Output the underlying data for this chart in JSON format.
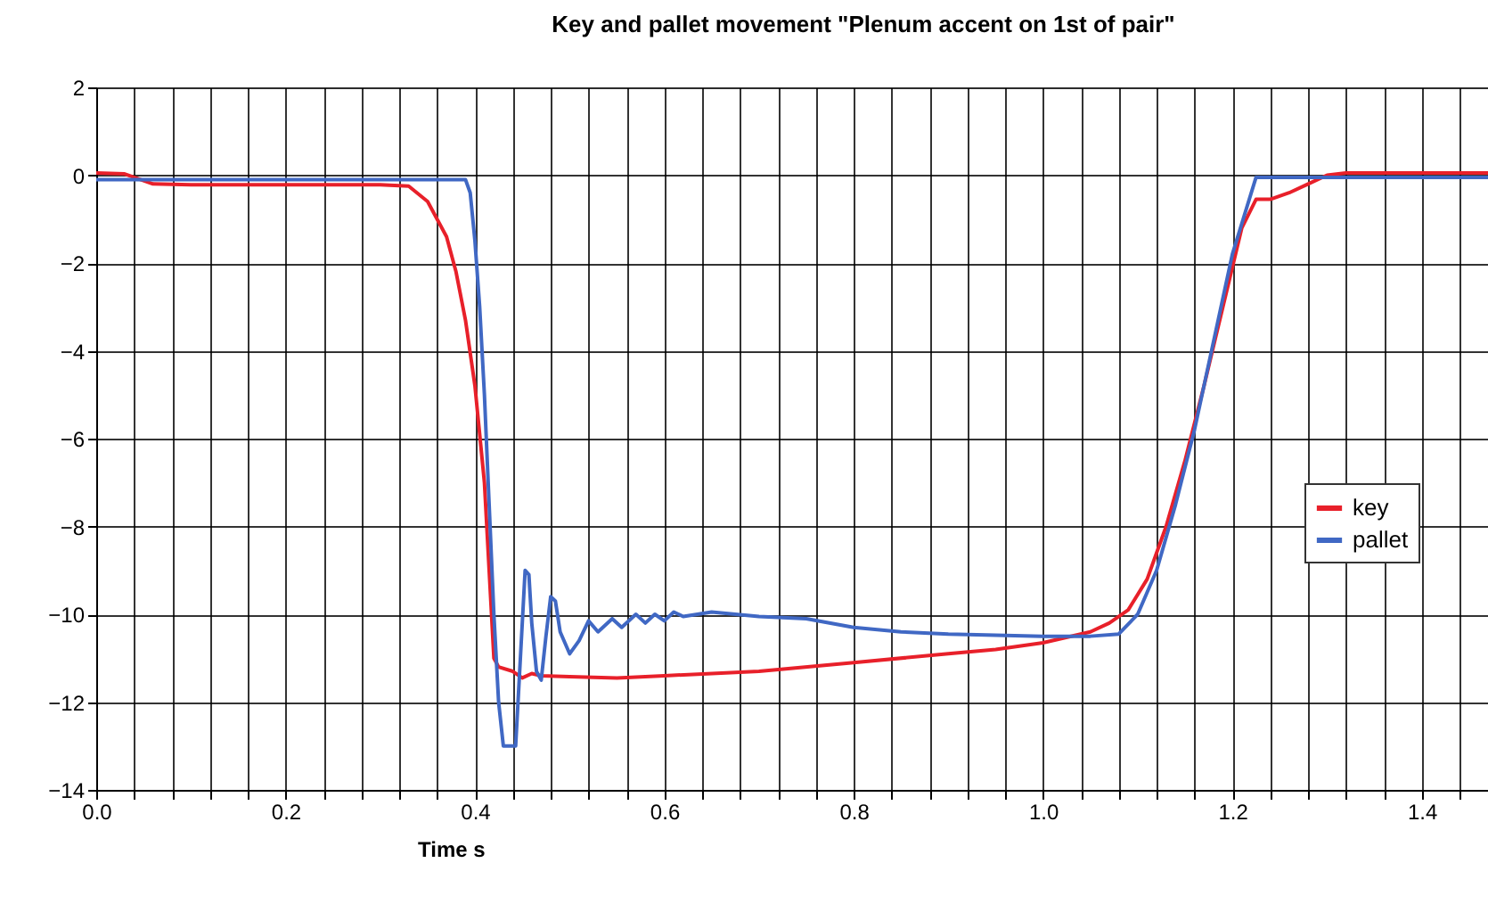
{
  "chart_data": {
    "type": "line",
    "title": "Key and pallet movement \"Plenum accent on 1st of pair\"",
    "xlabel": "Time s",
    "xlim": [
      0,
      1.47
    ],
    "ylim": [
      -14,
      2
    ],
    "xticks": [
      {
        "value": 0,
        "label": "0.0"
      },
      {
        "value": 0.04,
        "label": null
      },
      {
        "value": 0.08,
        "label": null
      },
      {
        "value": 0.12,
        "label": null
      },
      {
        "value": 0.16,
        "label": null
      },
      {
        "value": 0.2,
        "label": "0.2"
      },
      {
        "value": 0.24,
        "label": null
      },
      {
        "value": 0.28,
        "label": null
      },
      {
        "value": 0.32,
        "label": null
      },
      {
        "value": 0.36,
        "label": null
      },
      {
        "value": 0.4,
        "label": "0.4"
      },
      {
        "value": 0.44,
        "label": null
      },
      {
        "value": 0.48,
        "label": null
      },
      {
        "value": 0.52,
        "label": null
      },
      {
        "value": 0.56,
        "label": null
      },
      {
        "value": 0.6,
        "label": "0.6"
      },
      {
        "value": 0.64,
        "label": null
      },
      {
        "value": 0.68,
        "label": null
      },
      {
        "value": 0.72,
        "label": null
      },
      {
        "value": 0.76,
        "label": null
      },
      {
        "value": 0.8,
        "label": "0.8"
      },
      {
        "value": 0.84,
        "label": null
      },
      {
        "value": 0.88,
        "label": null
      },
      {
        "value": 0.92,
        "label": null
      },
      {
        "value": 0.96,
        "label": null
      },
      {
        "value": 1.0,
        "label": "1.0"
      },
      {
        "value": 1.04,
        "label": null
      },
      {
        "value": 1.08,
        "label": null
      },
      {
        "value": 1.12,
        "label": null
      },
      {
        "value": 1.16,
        "label": null
      },
      {
        "value": 1.2,
        "label": "1.2"
      },
      {
        "value": 1.24,
        "label": null
      },
      {
        "value": 1.28,
        "label": null
      },
      {
        "value": 1.32,
        "label": null
      },
      {
        "value": 1.36,
        "label": null
      },
      {
        "value": 1.4,
        "label": "1.4"
      },
      {
        "value": 1.44,
        "label": null
      }
    ],
    "yticks": [
      -14,
      -12,
      -10,
      -8,
      -6,
      -4,
      -2,
      0,
      2
    ],
    "grid": true,
    "legend": "right",
    "marker": "none",
    "line_style": "solid",
    "series": [
      {
        "name": "key",
        "color": "#e8202a",
        "x": [
          0,
          0.03,
          0.06,
          0.1,
          0.2,
          0.3,
          0.33,
          0.35,
          0.37,
          0.38,
          0.39,
          0.4,
          0.41,
          0.415,
          0.42,
          0.425,
          0.44,
          0.45,
          0.46,
          0.47,
          0.5,
          0.55,
          0.6,
          0.7,
          0.8,
          0.9,
          0.95,
          1.0,
          1.05,
          1.07,
          1.09,
          1.11,
          1.13,
          1.15,
          1.17,
          1.19,
          1.21,
          1.225,
          1.24,
          1.26,
          1.28,
          1.3,
          1.32,
          1.47
        ],
        "values": [
          0.05,
          0.03,
          -0.2,
          -0.22,
          -0.22,
          -0.22,
          -0.25,
          -0.6,
          -1.4,
          -2.2,
          -3.3,
          -4.8,
          -7,
          -9,
          -11,
          -11.2,
          -11.3,
          -11.45,
          -11.35,
          -11.4,
          -11.42,
          -11.45,
          -11.4,
          -11.3,
          -11.1,
          -10.9,
          -10.8,
          -10.65,
          -10.4,
          -10.2,
          -9.9,
          -9.2,
          -8,
          -6.5,
          -4.8,
          -3,
          -1.2,
          -0.55,
          -0.55,
          -0.4,
          -0.2,
          0,
          0.05,
          0.05
        ]
      },
      {
        "name": "pallet",
        "color": "#4068c4",
        "x": [
          0,
          0.38,
          0.39,
          0.395,
          0.4,
          0.405,
          0.41,
          0.415,
          0.42,
          0.425,
          0.43,
          0.443,
          0.448,
          0.453,
          0.457,
          0.46,
          0.465,
          0.47,
          0.475,
          0.48,
          0.485,
          0.49,
          0.5,
          0.51,
          0.52,
          0.53,
          0.545,
          0.555,
          0.57,
          0.58,
          0.59,
          0.6,
          0.61,
          0.62,
          0.65,
          0.7,
          0.75,
          0.8,
          0.85,
          0.9,
          1.0,
          1.05,
          1.08,
          1.1,
          1.12,
          1.14,
          1.16,
          1.18,
          1.2,
          1.225,
          1.3,
          1.47
        ],
        "values": [
          -0.1,
          -0.1,
          -0.1,
          -0.4,
          -1.5,
          -3,
          -5,
          -7.5,
          -10,
          -12,
          -13,
          -13,
          -11,
          -9,
          -9.1,
          -10.2,
          -11.3,
          -11.5,
          -10.5,
          -9.6,
          -9.7,
          -10.4,
          -10.9,
          -10.6,
          -10.15,
          -10.4,
          -10.1,
          -10.3,
          -10,
          -10.2,
          -10,
          -10.15,
          -9.95,
          -10.05,
          -9.95,
          -10.05,
          -10.1,
          -10.3,
          -10.4,
          -10.45,
          -10.5,
          -10.5,
          -10.45,
          -10,
          -9,
          -7.5,
          -5.8,
          -3.8,
          -1.8,
          -0.05,
          -0.05,
          -0.05
        ]
      }
    ]
  }
}
